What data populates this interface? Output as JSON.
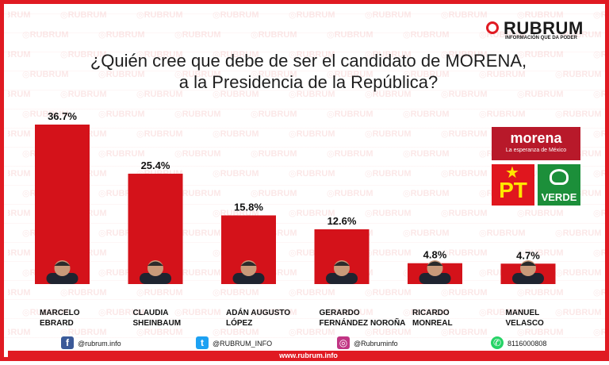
{
  "brand": {
    "name": "RUBRUM",
    "tagline": "INFORMACIÓN QUE DA PODER",
    "watermark": "RUBRUM"
  },
  "title_line1": "¿Quién cree que debe de ser el candidato de MORENA,",
  "title_line2": "a la Presidencia de la República?",
  "chart_data": {
    "type": "bar",
    "title": "¿Quién cree que debe de ser el candidato de MORENA, a la Presidencia de la República?",
    "categories": [
      [
        "MARCELO",
        "EBRARD"
      ],
      [
        "CLAUDIA",
        "SHEINBAUM"
      ],
      [
        "ADÁN AUGUSTO",
        "LÓPEZ"
      ],
      [
        "GERARDO",
        "FERNÁNDEZ NOROÑA"
      ],
      [
        "RICARDO",
        "MONREAL"
      ],
      [
        "MANUEL",
        "VELASCO"
      ]
    ],
    "values": [
      36.7,
      25.4,
      15.8,
      12.6,
      4.8,
      4.7
    ],
    "value_labels": [
      "36.7%",
      "25.4%",
      "15.8%",
      "12.6%",
      "4.8%",
      "4.7%"
    ],
    "ylim": [
      0,
      36.7
    ],
    "bar_color": "#d4121a",
    "grid": false,
    "legend": "none"
  },
  "party_logos": {
    "morena": {
      "name": "morena",
      "slogan": "La esperanza de México",
      "color": "#b8192a"
    },
    "pt": {
      "name": "PT",
      "color": "#e0161e"
    },
    "verde": {
      "name": "VERDE",
      "color": "#1c8f3a"
    }
  },
  "footer": {
    "website": "www.rubrum.info",
    "facebook": {
      "icon": "facebook-icon",
      "text": "@rubrum.info"
    },
    "twitter": {
      "icon": "twitter-icon",
      "text": "@RUBRUM_INFO"
    },
    "instagram": {
      "icon": "instagram-icon",
      "text": "@Rubruminfo"
    },
    "whatsapp": {
      "icon": "whatsapp-icon",
      "text": "8116000808"
    }
  }
}
